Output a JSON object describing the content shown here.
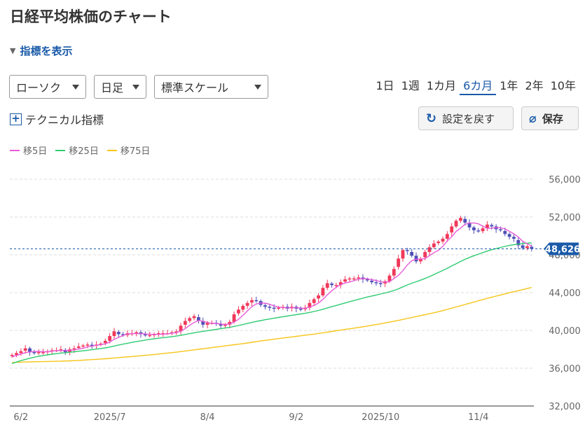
{
  "page": {
    "title": "日経平均株価のチャート",
    "indicator_toggle": "指標を表示",
    "selects": {
      "chart_type": "ローソク",
      "interval": "日足",
      "scale": "標準スケール"
    },
    "periods": [
      "1日",
      "1週",
      "1カ月",
      "6カ月",
      "1年",
      "2年",
      "10年"
    ],
    "active_period": "6カ月",
    "tech_indicator": "テクニカル指標",
    "reset_button": "設定を戻す",
    "save_button": "保存",
    "icons": {
      "reset": "refresh-icon",
      "save": "paperclip-icon",
      "tech": "plus-box-icon",
      "toggle": "triangle-down-icon"
    }
  },
  "chart_data": {
    "type": "candlestick",
    "legend": [
      {
        "name": "移5日",
        "color": "#e85ad8"
      },
      {
        "name": "移25日",
        "color": "#2ecc71"
      },
      {
        "name": "移75日",
        "color": "#f5c518"
      }
    ],
    "up_color": "#f0385a",
    "down_color": "#4f4fb8",
    "ylim": [
      32000,
      56000
    ],
    "yticks": [
      "56,000",
      "52,000",
      "48,000",
      "44,000",
      "40,000",
      "36,000",
      "32,000"
    ],
    "ytick_values": [
      56000,
      52000,
      48000,
      44000,
      40000,
      36000,
      32000
    ],
    "xtick_labels": [
      {
        "label": "6/2",
        "index": 2
      },
      {
        "label": "2025/7",
        "index": 22
      },
      {
        "label": "8/4",
        "index": 44
      },
      {
        "label": "9/2",
        "index": 64
      },
      {
        "label": "2025/10",
        "index": 83
      },
      {
        "label": "11/4",
        "index": 105
      }
    ],
    "last_price": 48626,
    "last_price_label": "48,626",
    "closes": [
      37400,
      37600,
      37800,
      38100,
      37700,
      37600,
      37700,
      37700,
      37800,
      37900,
      37900,
      38000,
      37700,
      38000,
      38100,
      38300,
      38400,
      38500,
      38400,
      38500,
      38600,
      38900,
      39400,
      39900,
      39600,
      39500,
      39700,
      39700,
      39800,
      39600,
      39500,
      39500,
      39600,
      39700,
      39700,
      39700,
      39800,
      39900,
      40500,
      41000,
      41300,
      41500,
      41000,
      40600,
      40800,
      40800,
      40700,
      40500,
      40600,
      40900,
      41700,
      42200,
      42600,
      42900,
      43200,
      43100,
      42700,
      42500,
      42400,
      42300,
      42400,
      42500,
      42300,
      42500,
      42300,
      42200,
      42400,
      42900,
      43300,
      43700,
      44500,
      45000,
      44800,
      44800,
      45100,
      45400,
      45500,
      45500,
      45600,
      45400,
      45300,
      45100,
      45000,
      44900,
      45200,
      45800,
      46500,
      47600,
      48500,
      48400,
      47900,
      47300,
      47600,
      48300,
      48800,
      49200,
      49400,
      49700,
      50200,
      51000,
      51600,
      51900,
      51400,
      50900,
      50600,
      50500,
      50800,
      51200,
      51000,
      50700,
      50600,
      50200,
      49900,
      49700,
      49000,
      48700,
      48900,
      48626
    ],
    "ma5": [
      37200,
      37350,
      37500,
      37650,
      37720,
      37760,
      37780,
      37740,
      37740,
      37800,
      37860,
      37880,
      37860,
      37900,
      37940,
      38020,
      38100,
      38260,
      38340,
      38420,
      38500,
      38580,
      38760,
      39060,
      39260,
      39460,
      39620,
      39660,
      39660,
      39660,
      39620,
      39600,
      39580,
      39580,
      39600,
      39640,
      39700,
      39760,
      39920,
      40200,
      40540,
      40840,
      41060,
      40960,
      40840,
      40740,
      40740,
      40680,
      40620,
      40680,
      40880,
      41180,
      41600,
      42060,
      42520,
      42800,
      42900,
      42880,
      42760,
      42600,
      42460,
      42420,
      42380,
      42400,
      42400,
      42380,
      42320,
      42480,
      42640,
      42900,
      43280,
      43760,
      44200,
      44560,
      44840,
      45020,
      45120,
      45260,
      45420,
      45480,
      45460,
      45380,
      45280,
      45140,
      45100,
      45160,
      45480,
      45820,
      46320,
      46920,
      47380,
      47540,
      47540,
      47600,
      47900,
      48240,
      48460,
      48900,
      49460,
      49900,
      50480,
      50820,
      51220,
      51360,
      51360,
      51280,
      51040,
      50800,
      50820,
      50880,
      50860,
      50740,
      50480,
      50220,
      49880,
      49420,
      49180,
      48900
    ],
    "ma25": [
      36500,
      36650,
      36800,
      36930,
      37050,
      37160,
      37260,
      37340,
      37410,
      37480,
      37540,
      37600,
      37640,
      37690,
      37740,
      37790,
      37840,
      37900,
      37960,
      38020,
      38080,
      38150,
      38240,
      38350,
      38450,
      38550,
      38640,
      38730,
      38820,
      38900,
      38980,
      39050,
      39110,
      39170,
      39230,
      39280,
      39340,
      39400,
      39480,
      39570,
      39660,
      39750,
      39830,
      39900,
      39970,
      40040,
      40110,
      40180,
      40250,
      40320,
      40420,
      40520,
      40620,
      40730,
      40840,
      40950,
      41040,
      41130,
      41210,
      41290,
      41370,
      41450,
      41520,
      41600,
      41670,
      41740,
      41810,
      41900,
      42000,
      42110,
      42240,
      42380,
      42510,
      42640,
      42770,
      42900,
      43030,
      43160,
      43290,
      43410,
      43530,
      43640,
      43750,
      43850,
      43960,
      44080,
      44220,
      44400,
      44610,
      44810,
      44990,
      45150,
      45320,
      45500,
      45700,
      45910,
      46130,
      46350,
      46580,
      46820,
      47060,
      47300,
      47520,
      47720,
      47900,
      48070,
      48230,
      48390,
      48530,
      48660,
      48780,
      48890,
      48990,
      49070,
      49130,
      49180,
      49220,
      49260
    ],
    "ma75": [
      36600,
      36620,
      36640,
      36660,
      36670,
      36680,
      36690,
      36700,
      36710,
      36720,
      36730,
      36740,
      36760,
      36780,
      36800,
      36820,
      36850,
      36880,
      36910,
      36940,
      36970,
      37000,
      37040,
      37080,
      37120,
      37160,
      37200,
      37240,
      37280,
      37320,
      37360,
      37400,
      37450,
      37500,
      37550,
      37600,
      37650,
      37700,
      37760,
      37820,
      37880,
      37940,
      38000,
      38060,
      38120,
      38180,
      38240,
      38300,
      38360,
      38420,
      38480,
      38540,
      38600,
      38670,
      38740,
      38810,
      38880,
      38950,
      39010,
      39070,
      39130,
      39190,
      39250,
      39310,
      39370,
      39430,
      39490,
      39550,
      39610,
      39680,
      39750,
      39820,
      39890,
      39960,
      40030,
      40100,
      40170,
      40240,
      40310,
      40380,
      40460,
      40540,
      40620,
      40700,
      40790,
      40880,
      40970,
      41060,
      41160,
      41260,
      41360,
      41460,
      41560,
      41660,
      41760,
      41870,
      41980,
      42100,
      42220,
      42350,
      42480,
      42610,
      42740,
      42870,
      43000,
      43130,
      43260,
      43390,
      43510,
      43630,
      43750,
      43870,
      43990,
      44100,
      44210,
      44320,
      44430,
      44540
    ]
  }
}
